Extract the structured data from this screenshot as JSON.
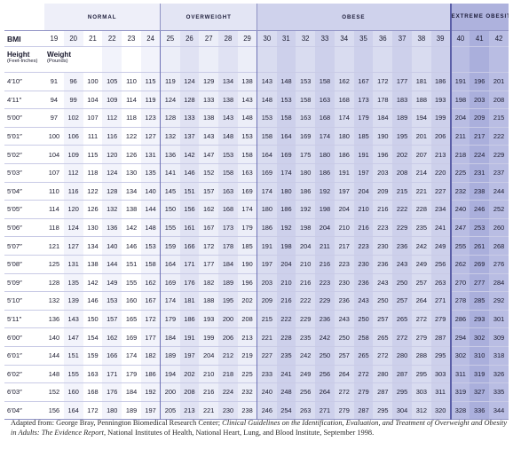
{
  "categories": {
    "normal": "NORMAL",
    "overweight": "OVERWEIGHT",
    "obese": "OBESE",
    "extreme": "EXTREME OBESITY"
  },
  "bmi_label": "BMI",
  "bmi_values": [
    "19",
    "20",
    "21",
    "22",
    "23",
    "24",
    "25",
    "26",
    "27",
    "28",
    "29",
    "30",
    "31",
    "32",
    "33",
    "34",
    "35",
    "36",
    "37",
    "38",
    "39",
    "40",
    "41",
    "42"
  ],
  "height_header": {
    "title": "Height",
    "sub": "(Feet-Inches)"
  },
  "weight_header": {
    "title": "Weight",
    "sub": "(Pounds)"
  },
  "rows": [
    {
      "height": "4′10″",
      "weights": [
        "91",
        "96",
        "100",
        "105",
        "110",
        "115",
        "119",
        "124",
        "129",
        "134",
        "138",
        "143",
        "148",
        "153",
        "158",
        "162",
        "167",
        "172",
        "177",
        "181",
        "186",
        "191",
        "196",
        "201"
      ]
    },
    {
      "height": "4′11″",
      "weights": [
        "94",
        "99",
        "104",
        "109",
        "114",
        "119",
        "124",
        "128",
        "133",
        "138",
        "143",
        "148",
        "153",
        "158",
        "163",
        "168",
        "173",
        "178",
        "183",
        "188",
        "193",
        "198",
        "203",
        "208"
      ]
    },
    {
      "height": "5′00″",
      "weights": [
        "97",
        "102",
        "107",
        "112",
        "118",
        "123",
        "128",
        "133",
        "138",
        "143",
        "148",
        "153",
        "158",
        "163",
        "168",
        "174",
        "179",
        "184",
        "189",
        "194",
        "199",
        "204",
        "209",
        "215"
      ]
    },
    {
      "height": "5′01″",
      "weights": [
        "100",
        "106",
        "111",
        "116",
        "122",
        "127",
        "132",
        "137",
        "143",
        "148",
        "153",
        "158",
        "164",
        "169",
        "174",
        "180",
        "185",
        "190",
        "195",
        "201",
        "206",
        "211",
        "217",
        "222"
      ]
    },
    {
      "height": "5′02″",
      "weights": [
        "104",
        "109",
        "115",
        "120",
        "126",
        "131",
        "136",
        "142",
        "147",
        "153",
        "158",
        "164",
        "169",
        "175",
        "180",
        "186",
        "191",
        "196",
        "202",
        "207",
        "213",
        "218",
        "224",
        "229"
      ]
    },
    {
      "height": "5′03″",
      "weights": [
        "107",
        "112",
        "118",
        "124",
        "130",
        "135",
        "141",
        "146",
        "152",
        "158",
        "163",
        "169",
        "174",
        "180",
        "186",
        "191",
        "197",
        "203",
        "208",
        "214",
        "220",
        "225",
        "231",
        "237"
      ]
    },
    {
      "height": "5′04″",
      "weights": [
        "110",
        "116",
        "122",
        "128",
        "134",
        "140",
        "145",
        "151",
        "157",
        "163",
        "169",
        "174",
        "180",
        "186",
        "192",
        "197",
        "204",
        "209",
        "215",
        "221",
        "227",
        "232",
        "238",
        "244"
      ]
    },
    {
      "height": "5′05″",
      "weights": [
        "114",
        "120",
        "126",
        "132",
        "138",
        "144",
        "150",
        "156",
        "162",
        "168",
        "174",
        "180",
        "186",
        "192",
        "198",
        "204",
        "210",
        "216",
        "222",
        "228",
        "234",
        "240",
        "246",
        "252"
      ]
    },
    {
      "height": "5′06″",
      "weights": [
        "118",
        "124",
        "130",
        "136",
        "142",
        "148",
        "155",
        "161",
        "167",
        "173",
        "179",
        "186",
        "192",
        "198",
        "204",
        "210",
        "216",
        "223",
        "229",
        "235",
        "241",
        "247",
        "253",
        "260"
      ]
    },
    {
      "height": "5′07″",
      "weights": [
        "121",
        "127",
        "134",
        "140",
        "146",
        "153",
        "159",
        "166",
        "172",
        "178",
        "185",
        "191",
        "198",
        "204",
        "211",
        "217",
        "223",
        "230",
        "236",
        "242",
        "249",
        "255",
        "261",
        "268"
      ]
    },
    {
      "height": "5′08″",
      "weights": [
        "125",
        "131",
        "138",
        "144",
        "151",
        "158",
        "164",
        "171",
        "177",
        "184",
        "190",
        "197",
        "204",
        "210",
        "216",
        "223",
        "230",
        "236",
        "243",
        "249",
        "256",
        "262",
        "269",
        "276"
      ]
    },
    {
      "height": "5′09″",
      "weights": [
        "128",
        "135",
        "142",
        "149",
        "155",
        "162",
        "169",
        "176",
        "182",
        "189",
        "196",
        "203",
        "210",
        "216",
        "223",
        "230",
        "236",
        "243",
        "250",
        "257",
        "263",
        "270",
        "277",
        "284"
      ]
    },
    {
      "height": "5′10″",
      "weights": [
        "132",
        "139",
        "146",
        "153",
        "160",
        "167",
        "174",
        "181",
        "188",
        "195",
        "202",
        "209",
        "216",
        "222",
        "229",
        "236",
        "243",
        "250",
        "257",
        "264",
        "271",
        "278",
        "285",
        "292"
      ]
    },
    {
      "height": "5′11″",
      "weights": [
        "136",
        "143",
        "150",
        "157",
        "165",
        "172",
        "179",
        "186",
        "193",
        "200",
        "208",
        "215",
        "222",
        "229",
        "236",
        "243",
        "250",
        "257",
        "265",
        "272",
        "279",
        "286",
        "293",
        "301"
      ]
    },
    {
      "height": "6′00″",
      "weights": [
        "140",
        "147",
        "154",
        "162",
        "169",
        "177",
        "184",
        "191",
        "199",
        "206",
        "213",
        "221",
        "228",
        "235",
        "242",
        "250",
        "258",
        "265",
        "272",
        "279",
        "287",
        "294",
        "302",
        "309"
      ]
    },
    {
      "height": "6′01″",
      "weights": [
        "144",
        "151",
        "159",
        "166",
        "174",
        "182",
        "189",
        "197",
        "204",
        "212",
        "219",
        "227",
        "235",
        "242",
        "250",
        "257",
        "265",
        "272",
        "280",
        "288",
        "295",
        "302",
        "310",
        "318"
      ]
    },
    {
      "height": "6′02″",
      "weights": [
        "148",
        "155",
        "163",
        "171",
        "179",
        "186",
        "194",
        "202",
        "210",
        "218",
        "225",
        "233",
        "241",
        "249",
        "256",
        "264",
        "272",
        "280",
        "287",
        "295",
        "303",
        "311",
        "319",
        "326"
      ]
    },
    {
      "height": "6′03″",
      "weights": [
        "152",
        "160",
        "168",
        "176",
        "184",
        "192",
        "200",
        "208",
        "216",
        "224",
        "232",
        "240",
        "248",
        "256",
        "264",
        "272",
        "279",
        "287",
        "295",
        "303",
        "311",
        "319",
        "327",
        "335"
      ]
    },
    {
      "height": "6′04″",
      "weights": [
        "156",
        "164",
        "172",
        "180",
        "189",
        "197",
        "205",
        "213",
        "221",
        "230",
        "238",
        "246",
        "254",
        "263",
        "271",
        "279",
        "287",
        "295",
        "304",
        "312",
        "320",
        "328",
        "336",
        "344"
      ]
    }
  ],
  "source": {
    "prefix": "Adapted from: George Bray, Pennington Biomedical Research Center; ",
    "italic_title": "Clinical Guidelines on the Identification, Evaluation, and Treatment of Overweight and Obesity in Adults: The Evidence Report",
    "suffix": ", National Institutes of Health, National Heart, Lung, and Blood Institute, September 1998."
  },
  "colors": {
    "normal": "#eeeff9",
    "overweight": "#e3e5f4",
    "obese": "#cfd2ec",
    "extreme": "#aeb2dd",
    "rule": "#8f92c4"
  }
}
